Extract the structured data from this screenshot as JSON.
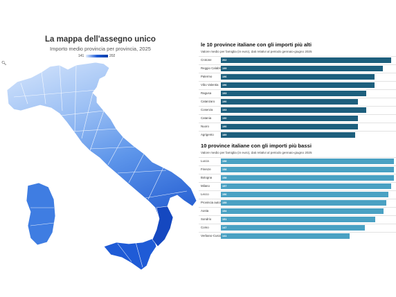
{
  "map": {
    "title": "La mappa dell'assegno unico",
    "subtitle": "Importo medio provincia per provincia, 2025",
    "legend_min": "141",
    "legend_max": "202",
    "zoom_icon": "search-icon",
    "colors": {
      "light": "#cfe0fb",
      "mid": "#5d95ea",
      "dark": "#1548c0"
    }
  },
  "chart_data": [
    {
      "type": "bar",
      "orientation": "horizontal",
      "title": "le 10 province italiane con gli importi più alti",
      "subtitle": "Valore medio per famiglia (in euro), dati relativi al periodo gennaio-giugno 2025",
      "categories": [
        "Crotone",
        "Reggio Calabria",
        "Palermo",
        "Vibo Valentia",
        "Ragusa",
        "Catanzaro",
        "Cosenza",
        "Catania",
        "Nuoro",
        "Agrigento"
      ],
      "values": [
        202,
        199,
        196,
        196,
        193,
        190,
        193,
        190,
        190,
        189
      ],
      "xlim": [
        140,
        203
      ],
      "color": "#1d5f7d"
    },
    {
      "type": "bar",
      "orientation": "horizontal",
      "title": "10 province italiane con gli importi più bassi",
      "subtitle": "Valore medio per famiglia (in euro), dati relativi al periodo gennaio-giugno 2025",
      "categories": [
        "Lucca",
        "Firenze",
        "Bologna",
        "Milano",
        "Lecco",
        "Provincia autonoma di Bolzano",
        "Aosta",
        "Sondrio",
        "Como",
        "Verbano-Cusio-Ossola"
      ],
      "values": [
        158,
        158,
        158,
        157,
        156,
        155,
        154,
        151,
        147,
        141
      ],
      "xlim": [
        92,
        158
      ],
      "color": "#4aa1c3"
    }
  ]
}
